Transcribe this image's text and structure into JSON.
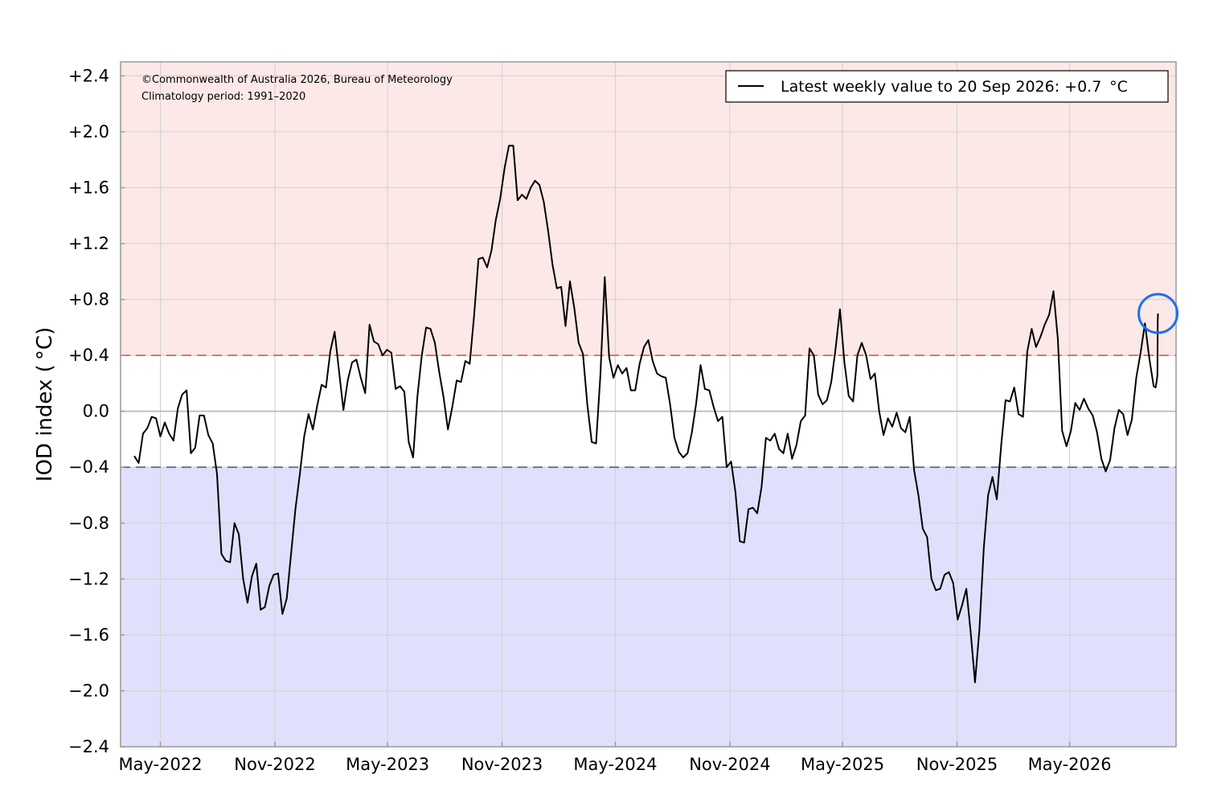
{
  "chart_data": {
    "type": "line",
    "title": "",
    "xlabel": "",
    "ylabel": "IOD index ( °C)",
    "ylim": [
      -2.4,
      2.5
    ],
    "xlim": [
      "2022-02-26",
      "2026-10-19"
    ],
    "yticks": [
      2.4,
      2.0,
      1.6,
      1.2,
      0.8,
      0.4,
      0.0,
      -0.4,
      -0.8,
      -1.2,
      -1.6,
      -2.0,
      -2.4
    ],
    "ytick_labels": [
      "+2.4",
      "+2.0",
      "+1.6",
      "+1.2",
      "+0.8",
      "+0.4",
      "0.0",
      "−0.4",
      "−0.8",
      "−1.2",
      "−1.6",
      "−2.0",
      "−2.4"
    ],
    "xticks": [
      "2022-05-01",
      "2022-11-01",
      "2023-05-01",
      "2023-11-01",
      "2024-05-01",
      "2024-11-01",
      "2025-05-01",
      "2025-11-01",
      "2026-05-01"
    ],
    "xtick_labels": [
      "May-2022",
      "Nov-2022",
      "May-2023",
      "Nov-2023",
      "May-2024",
      "Nov-2024",
      "May-2025",
      "Nov-2025",
      "May-2026"
    ],
    "grid": true,
    "thresholds": {
      "positive": 0.4,
      "negative": -0.4
    },
    "colors": {
      "positive_zone": "#fde8e8",
      "negative_zone": "#e0e0fc",
      "positive_line": "#e06060",
      "negative_line": "#606090",
      "series": "#000000",
      "highlight": "#1a6ff0"
    },
    "legend": {
      "location": "top-right",
      "entries": [
        "Latest weekly value to 20 Sep 2026: +0.7  °C"
      ]
    },
    "annotations": [
      "©Commonwealth of Australia 2026, Bureau of Meteorology",
      "Climatology period: 1991–2020"
    ],
    "highlight_point": {
      "x": "2026-09-20",
      "y": 0.7
    },
    "series": [
      {
        "values": [
          [
            "2022-03-20",
            -0.32
          ],
          [
            "2022-03-27",
            -0.37
          ],
          [
            "2022-04-03",
            -0.16
          ],
          [
            "2022-04-10",
            -0.12
          ],
          [
            "2022-04-17",
            -0.04
          ],
          [
            "2022-04-24",
            -0.05
          ],
          [
            "2022-05-01",
            -0.18
          ],
          [
            "2022-05-08",
            -0.08
          ],
          [
            "2022-05-15",
            -0.16
          ],
          [
            "2022-05-22",
            -0.21
          ],
          [
            "2022-05-29",
            0.02
          ],
          [
            "2022-06-05",
            0.12
          ],
          [
            "2022-06-12",
            0.15
          ],
          [
            "2022-06-19",
            -0.3
          ],
          [
            "2022-06-26",
            -0.26
          ],
          [
            "2022-07-03",
            -0.03
          ],
          [
            "2022-07-10",
            -0.03
          ],
          [
            "2022-07-17",
            -0.17
          ],
          [
            "2022-07-24",
            -0.23
          ],
          [
            "2022-07-31",
            -0.45
          ],
          [
            "2022-08-07",
            -1.02
          ],
          [
            "2022-08-14",
            -1.07
          ],
          [
            "2022-08-21",
            -1.08
          ],
          [
            "2022-08-28",
            -0.8
          ],
          [
            "2022-09-04",
            -0.88
          ],
          [
            "2022-09-11",
            -1.2
          ],
          [
            "2022-09-18",
            -1.37
          ],
          [
            "2022-09-25",
            -1.18
          ],
          [
            "2022-10-02",
            -1.09
          ],
          [
            "2022-10-09",
            -1.42
          ],
          [
            "2022-10-16",
            -1.4
          ],
          [
            "2022-10-23",
            -1.25
          ],
          [
            "2022-10-30",
            -1.17
          ],
          [
            "2022-11-06",
            -1.16
          ],
          [
            "2022-11-13",
            -1.45
          ],
          [
            "2022-11-20",
            -1.34
          ],
          [
            "2022-11-27",
            -1.02
          ],
          [
            "2022-12-04",
            -0.7
          ],
          [
            "2022-12-11",
            -0.45
          ],
          [
            "2022-12-18",
            -0.18
          ],
          [
            "2022-12-25",
            -0.02
          ],
          [
            "2023-01-01",
            -0.13
          ],
          [
            "2023-01-08",
            0.04
          ],
          [
            "2023-01-15",
            0.19
          ],
          [
            "2023-01-22",
            0.17
          ],
          [
            "2023-01-29",
            0.43
          ],
          [
            "2023-02-05",
            0.57
          ],
          [
            "2023-02-12",
            0.29
          ],
          [
            "2023-02-19",
            0.01
          ],
          [
            "2023-02-26",
            0.22
          ],
          [
            "2023-03-05",
            0.35
          ],
          [
            "2023-03-12",
            0.37
          ],
          [
            "2023-03-19",
            0.24
          ],
          [
            "2023-03-26",
            0.13
          ],
          [
            "2023-04-02",
            0.62
          ],
          [
            "2023-04-09",
            0.5
          ],
          [
            "2023-04-16",
            0.48
          ],
          [
            "2023-04-23",
            0.4
          ],
          [
            "2023-04-30",
            0.44
          ],
          [
            "2023-05-07",
            0.42
          ],
          [
            "2023-05-14",
            0.16
          ],
          [
            "2023-05-21",
            0.18
          ],
          [
            "2023-05-28",
            0.14
          ],
          [
            "2023-06-04",
            -0.22
          ],
          [
            "2023-06-11",
            -0.33
          ],
          [
            "2023-06-18",
            0.11
          ],
          [
            "2023-06-25",
            0.4
          ],
          [
            "2023-07-02",
            0.6
          ],
          [
            "2023-07-09",
            0.59
          ],
          [
            "2023-07-16",
            0.49
          ],
          [
            "2023-07-23",
            0.28
          ],
          [
            "2023-07-30",
            0.1
          ],
          [
            "2023-08-06",
            -0.13
          ],
          [
            "2023-08-13",
            0.03
          ],
          [
            "2023-08-20",
            0.22
          ],
          [
            "2023-08-27",
            0.21
          ],
          [
            "2023-09-03",
            0.36
          ],
          [
            "2023-09-10",
            0.34
          ],
          [
            "2023-09-17",
            0.68
          ],
          [
            "2023-09-24",
            1.09
          ],
          [
            "2023-10-01",
            1.1
          ],
          [
            "2023-10-08",
            1.03
          ],
          [
            "2023-10-15",
            1.15
          ],
          [
            "2023-10-22",
            1.37
          ],
          [
            "2023-10-29",
            1.52
          ],
          [
            "2023-11-05",
            1.74
          ],
          [
            "2023-11-12",
            1.9
          ],
          [
            "2023-11-19",
            1.9
          ],
          [
            "2023-11-26",
            1.51
          ],
          [
            "2023-12-03",
            1.55
          ],
          [
            "2023-12-10",
            1.52
          ],
          [
            "2023-12-17",
            1.6
          ],
          [
            "2023-12-24",
            1.65
          ],
          [
            "2023-12-31",
            1.62
          ],
          [
            "2024-01-07",
            1.5
          ],
          [
            "2024-01-14",
            1.29
          ],
          [
            "2024-01-21",
            1.05
          ],
          [
            "2024-01-28",
            0.88
          ],
          [
            "2024-02-04",
            0.89
          ],
          [
            "2024-02-11",
            0.61
          ],
          [
            "2024-02-18",
            0.93
          ],
          [
            "2024-02-25",
            0.74
          ],
          [
            "2024-03-03",
            0.49
          ],
          [
            "2024-03-10",
            0.41
          ],
          [
            "2024-03-17",
            0.05
          ],
          [
            "2024-03-24",
            -0.22
          ],
          [
            "2024-03-31",
            -0.23
          ],
          [
            "2024-04-07",
            0.26
          ],
          [
            "2024-04-14",
            0.96
          ],
          [
            "2024-04-21",
            0.39
          ],
          [
            "2024-04-28",
            0.24
          ],
          [
            "2024-05-05",
            0.33
          ],
          [
            "2024-05-12",
            0.27
          ],
          [
            "2024-05-19",
            0.31
          ],
          [
            "2024-05-26",
            0.15
          ],
          [
            "2024-06-02",
            0.15
          ],
          [
            "2024-06-09",
            0.34
          ],
          [
            "2024-06-16",
            0.46
          ],
          [
            "2024-06-23",
            0.51
          ],
          [
            "2024-06-30",
            0.36
          ],
          [
            "2024-07-07",
            0.27
          ],
          [
            "2024-07-14",
            0.25
          ],
          [
            "2024-07-21",
            0.24
          ],
          [
            "2024-07-28",
            0.05
          ],
          [
            "2024-08-04",
            -0.19
          ],
          [
            "2024-08-11",
            -0.29
          ],
          [
            "2024-08-18",
            -0.33
          ],
          [
            "2024-08-25",
            -0.3
          ],
          [
            "2024-09-01",
            -0.15
          ],
          [
            "2024-09-08",
            0.06
          ],
          [
            "2024-09-15",
            0.33
          ],
          [
            "2024-09-22",
            0.16
          ],
          [
            "2024-09-29",
            0.15
          ],
          [
            "2024-10-06",
            0.03
          ],
          [
            "2024-10-13",
            -0.07
          ],
          [
            "2024-10-20",
            -0.04
          ],
          [
            "2024-10-27",
            -0.4
          ],
          [
            "2024-11-03",
            -0.36
          ],
          [
            "2024-11-10",
            -0.58
          ],
          [
            "2024-11-17",
            -0.93
          ],
          [
            "2024-11-24",
            -0.94
          ],
          [
            "2024-12-01",
            -0.7
          ],
          [
            "2024-12-08",
            -0.69
          ],
          [
            "2024-12-15",
            -0.73
          ],
          [
            "2024-12-22",
            -0.54
          ],
          [
            "2024-12-29",
            -0.19
          ],
          [
            "2025-01-05",
            -0.21
          ],
          [
            "2025-01-12",
            -0.16
          ],
          [
            "2025-01-19",
            -0.27
          ],
          [
            "2025-01-26",
            -0.3
          ],
          [
            "2025-02-02",
            -0.16
          ],
          [
            "2025-02-09",
            -0.34
          ],
          [
            "2025-02-16",
            -0.24
          ],
          [
            "2025-02-23",
            -0.07
          ],
          [
            "2025-03-02",
            -0.03
          ],
          [
            "2025-03-09",
            0.45
          ],
          [
            "2025-03-16",
            0.4
          ],
          [
            "2025-03-23",
            0.12
          ],
          [
            "2025-03-30",
            0.05
          ],
          [
            "2025-04-06",
            0.08
          ],
          [
            "2025-04-13",
            0.21
          ],
          [
            "2025-04-20",
            0.45
          ],
          [
            "2025-04-27",
            0.73
          ],
          [
            "2025-05-04",
            0.35
          ],
          [
            "2025-05-11",
            0.11
          ],
          [
            "2025-05-18",
            0.07
          ],
          [
            "2025-05-25",
            0.4
          ],
          [
            "2025-06-01",
            0.49
          ],
          [
            "2025-06-08",
            0.4
          ],
          [
            "2025-06-15",
            0.23
          ],
          [
            "2025-06-22",
            0.27
          ],
          [
            "2025-06-29",
            0.0
          ],
          [
            "2025-07-06",
            -0.17
          ],
          [
            "2025-07-13",
            -0.05
          ],
          [
            "2025-07-20",
            -0.11
          ],
          [
            "2025-07-27",
            -0.01
          ],
          [
            "2025-08-03",
            -0.12
          ],
          [
            "2025-08-10",
            -0.15
          ],
          [
            "2025-08-17",
            -0.04
          ],
          [
            "2025-08-24",
            -0.42
          ],
          [
            "2025-08-31",
            -0.6
          ],
          [
            "2025-09-07",
            -0.84
          ],
          [
            "2025-09-14",
            -0.9
          ],
          [
            "2025-09-21",
            -1.2
          ],
          [
            "2025-09-28",
            -1.28
          ],
          [
            "2025-10-05",
            -1.27
          ],
          [
            "2025-10-12",
            -1.17
          ],
          [
            "2025-10-19",
            -1.15
          ],
          [
            "2025-10-26",
            -1.23
          ],
          [
            "2025-11-02",
            -1.49
          ],
          [
            "2025-11-09",
            -1.39
          ],
          [
            "2025-11-16",
            -1.27
          ],
          [
            "2025-11-23",
            -1.58
          ],
          [
            "2025-11-30",
            -1.94
          ],
          [
            "2025-12-07",
            -1.56
          ],
          [
            "2025-12-14",
            -0.98
          ],
          [
            "2025-12-21",
            -0.6
          ],
          [
            "2025-12-28",
            -0.47
          ],
          [
            "2026-01-04",
            -0.63
          ],
          [
            "2026-01-11",
            -0.24
          ],
          [
            "2026-01-18",
            0.08
          ],
          [
            "2026-01-25",
            0.07
          ],
          [
            "2026-02-01",
            0.17
          ],
          [
            "2026-02-08",
            -0.02
          ],
          [
            "2026-02-15",
            -0.04
          ],
          [
            "2026-02-22",
            0.43
          ],
          [
            "2026-03-01",
            0.59
          ],
          [
            "2026-03-08",
            0.46
          ],
          [
            "2026-03-15",
            0.53
          ],
          [
            "2026-03-22",
            0.62
          ],
          [
            "2026-03-29",
            0.69
          ],
          [
            "2026-04-05",
            0.86
          ],
          [
            "2026-04-12",
            0.52
          ],
          [
            "2026-04-19",
            -0.14
          ],
          [
            "2026-04-26",
            -0.25
          ],
          [
            "2026-05-03",
            -0.14
          ],
          [
            "2026-05-10",
            0.06
          ],
          [
            "2026-05-17",
            0.01
          ],
          [
            "2026-05-24",
            0.09
          ],
          [
            "2026-05-31",
            0.02
          ],
          [
            "2026-06-07",
            -0.03
          ],
          [
            "2026-06-14",
            -0.15
          ],
          [
            "2026-06-21",
            -0.34
          ],
          [
            "2026-06-28",
            -0.43
          ],
          [
            "2026-07-05",
            -0.35
          ],
          [
            "2026-07-12",
            -0.12
          ],
          [
            "2026-07-19",
            0.01
          ],
          [
            "2026-07-26",
            -0.02
          ],
          [
            "2026-08-02",
            -0.17
          ],
          [
            "2026-08-09",
            -0.06
          ],
          [
            "2026-08-16",
            0.24
          ],
          [
            "2026-08-23",
            0.42
          ],
          [
            "2026-08-30",
            0.63
          ],
          [
            "2026-09-06",
            0.38
          ],
          [
            "2026-09-13",
            0.18
          ],
          [
            "2026-09-16",
            0.17
          ],
          [
            "2026-09-18",
            0.22
          ],
          [
            "2026-09-19",
            0.26
          ],
          [
            "2026-09-19T12:00",
            0.64
          ],
          [
            "2026-09-20",
            0.7
          ]
        ]
      }
    ]
  }
}
